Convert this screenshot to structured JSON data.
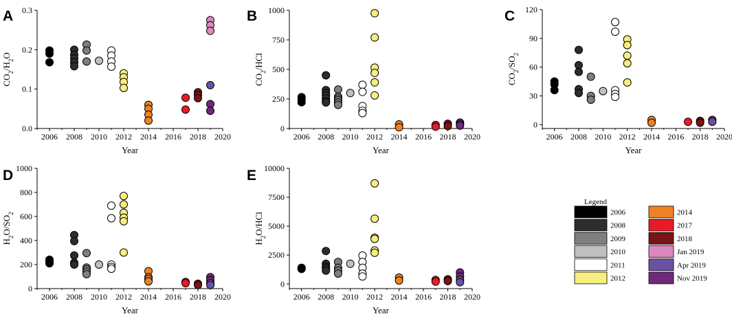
{
  "legend": {
    "title": "Legend",
    "entries": [
      {
        "label": "2006",
        "color": "#000000"
      },
      {
        "label": "2008",
        "color": "#2d2d2d"
      },
      {
        "label": "2009",
        "color": "#7f7f7f"
      },
      {
        "label": "2010",
        "color": "#c0c0c0"
      },
      {
        "label": "2011",
        "color": "#ffffff"
      },
      {
        "label": "2012",
        "color": "#f6ee7e"
      },
      {
        "label": "2014",
        "color": "#ef8224"
      },
      {
        "label": "2017",
        "color": "#e81c28"
      },
      {
        "label": "2018",
        "color": "#7a1416"
      },
      {
        "label": "Jan 2019",
        "color": "#de88bd"
      },
      {
        "label": "Apr 2019",
        "color": "#6a52a3"
      },
      {
        "label": "Nov 2019",
        "color": "#702a7c"
      }
    ]
  },
  "chart_data": [
    {
      "panel": "A",
      "type": "scatter",
      "xlabel": "Year",
      "ylabel": "CO2/H2O",
      "xlim": [
        2005,
        2020
      ],
      "ylim": [
        0,
        0.3
      ],
      "xticks": [
        "2006",
        "2008",
        "2010",
        "2012",
        "2014",
        "2016",
        "2018",
        "2020"
      ],
      "yticks": [
        "0.0",
        "0.1",
        "0.2",
        "0.3"
      ],
      "points": [
        {
          "x": 2006,
          "y": 0.198,
          "g": "2006"
        },
        {
          "x": 2006,
          "y": 0.19,
          "g": "2006"
        },
        {
          "x": 2006,
          "y": 0.168,
          "g": "2006"
        },
        {
          "x": 2008,
          "y": 0.2,
          "g": "2008"
        },
        {
          "x": 2008,
          "y": 0.187,
          "g": "2008"
        },
        {
          "x": 2008,
          "y": 0.178,
          "g": "2008"
        },
        {
          "x": 2008,
          "y": 0.168,
          "g": "2008"
        },
        {
          "x": 2008,
          "y": 0.158,
          "g": "2008"
        },
        {
          "x": 2009,
          "y": 0.213,
          "g": "2009"
        },
        {
          "x": 2009,
          "y": 0.198,
          "g": "2009"
        },
        {
          "x": 2009,
          "y": 0.17,
          "g": "2009"
        },
        {
          "x": 2010,
          "y": 0.172,
          "g": "2010"
        },
        {
          "x": 2011,
          "y": 0.198,
          "g": "2011"
        },
        {
          "x": 2011,
          "y": 0.185,
          "g": "2011"
        },
        {
          "x": 2011,
          "y": 0.17,
          "g": "2011"
        },
        {
          "x": 2011,
          "y": 0.157,
          "g": "2011"
        },
        {
          "x": 2012,
          "y": 0.14,
          "g": "2012"
        },
        {
          "x": 2012,
          "y": 0.13,
          "g": "2012"
        },
        {
          "x": 2012,
          "y": 0.118,
          "g": "2012"
        },
        {
          "x": 2012,
          "y": 0.103,
          "g": "2012"
        },
        {
          "x": 2014,
          "y": 0.06,
          "g": "2014"
        },
        {
          "x": 2014,
          "y": 0.05,
          "g": "2014"
        },
        {
          "x": 2014,
          "y": 0.035,
          "g": "2014"
        },
        {
          "x": 2014,
          "y": 0.02,
          "g": "2014"
        },
        {
          "x": 2017,
          "y": 0.078,
          "g": "2017"
        },
        {
          "x": 2017,
          "y": 0.048,
          "g": "2017"
        },
        {
          "x": 2018,
          "y": 0.092,
          "g": "2018"
        },
        {
          "x": 2018,
          "y": 0.085,
          "g": "2018"
        },
        {
          "x": 2018,
          "y": 0.077,
          "g": "2018"
        },
        {
          "x": 2019,
          "y": 0.275,
          "g": "Jan 2019"
        },
        {
          "x": 2019,
          "y": 0.262,
          "g": "Jan 2019"
        },
        {
          "x": 2019,
          "y": 0.248,
          "g": "Jan 2019"
        },
        {
          "x": 2019,
          "y": 0.11,
          "g": "Apr 2019"
        },
        {
          "x": 2019,
          "y": 0.062,
          "g": "Nov 2019"
        },
        {
          "x": 2019,
          "y": 0.045,
          "g": "Nov 2019"
        }
      ]
    },
    {
      "panel": "B",
      "type": "scatter",
      "xlabel": "Year",
      "ylabel": "CO2/HCl",
      "xlim": [
        2005,
        2020
      ],
      "ylim": [
        0,
        1000
      ],
      "xticks": [
        "2006",
        "2008",
        "2010",
        "2012",
        "2014",
        "2016",
        "2018",
        "2020"
      ],
      "yticks": [
        "0",
        "250",
        "500",
        "750",
        "1000"
      ],
      "points": [
        {
          "x": 2006,
          "y": 265,
          "g": "2006"
        },
        {
          "x": 2006,
          "y": 245,
          "g": "2006"
        },
        {
          "x": 2006,
          "y": 222,
          "g": "2006"
        },
        {
          "x": 2008,
          "y": 450,
          "g": "2008"
        },
        {
          "x": 2008,
          "y": 325,
          "g": "2008"
        },
        {
          "x": 2008,
          "y": 300,
          "g": "2008"
        },
        {
          "x": 2008,
          "y": 280,
          "g": "2008"
        },
        {
          "x": 2008,
          "y": 255,
          "g": "2008"
        },
        {
          "x": 2008,
          "y": 230,
          "g": "2008"
        },
        {
          "x": 2008,
          "y": 220,
          "g": "2008"
        },
        {
          "x": 2009,
          "y": 330,
          "g": "2009"
        },
        {
          "x": 2009,
          "y": 270,
          "g": "2009"
        },
        {
          "x": 2009,
          "y": 255,
          "g": "2009"
        },
        {
          "x": 2009,
          "y": 240,
          "g": "2009"
        },
        {
          "x": 2009,
          "y": 220,
          "g": "2009"
        },
        {
          "x": 2009,
          "y": 200,
          "g": "2009"
        },
        {
          "x": 2010,
          "y": 300,
          "g": "2010"
        },
        {
          "x": 2011,
          "y": 370,
          "g": "2011"
        },
        {
          "x": 2011,
          "y": 310,
          "g": "2011"
        },
        {
          "x": 2011,
          "y": 190,
          "g": "2011"
        },
        {
          "x": 2011,
          "y": 150,
          "g": "2011"
        },
        {
          "x": 2011,
          "y": 130,
          "g": "2011"
        },
        {
          "x": 2012,
          "y": 975,
          "g": "2012"
        },
        {
          "x": 2012,
          "y": 770,
          "g": "2012"
        },
        {
          "x": 2012,
          "y": 515,
          "g": "2012"
        },
        {
          "x": 2012,
          "y": 470,
          "g": "2012"
        },
        {
          "x": 2012,
          "y": 390,
          "g": "2012"
        },
        {
          "x": 2012,
          "y": 280,
          "g": "2012"
        },
        {
          "x": 2014,
          "y": 35,
          "g": "2014"
        },
        {
          "x": 2014,
          "y": 10,
          "g": "2014"
        },
        {
          "x": 2017,
          "y": 30,
          "g": "2017"
        },
        {
          "x": 2017,
          "y": 15,
          "g": "2017"
        },
        {
          "x": 2018,
          "y": 40,
          "g": "2018"
        },
        {
          "x": 2018,
          "y": 20,
          "g": "2018"
        },
        {
          "x": 2019,
          "y": 50,
          "g": "Nov 2019"
        },
        {
          "x": 2019,
          "y": 35,
          "g": "Apr 2019"
        },
        {
          "x": 2019,
          "y": 25,
          "g": "Nov 2019"
        }
      ]
    },
    {
      "panel": "C",
      "type": "scatter",
      "xlabel": "Year",
      "ylabel": "CO2/SO2",
      "xlim": [
        2005,
        2020
      ],
      "ylim": [
        -4,
        120
      ],
      "xticks": [
        "2006",
        "2008",
        "2010",
        "2012",
        "2014",
        "2016",
        "2018",
        "2020"
      ],
      "yticks": [
        "0",
        "30",
        "60",
        "90",
        "120"
      ],
      "points": [
        {
          "x": 2006,
          "y": 45,
          "g": "2006"
        },
        {
          "x": 2006,
          "y": 42,
          "g": "2006"
        },
        {
          "x": 2006,
          "y": 36,
          "g": "2006"
        },
        {
          "x": 2008,
          "y": 78,
          "g": "2008"
        },
        {
          "x": 2008,
          "y": 62,
          "g": "2008"
        },
        {
          "x": 2008,
          "y": 55,
          "g": "2008"
        },
        {
          "x": 2008,
          "y": 37,
          "g": "2008"
        },
        {
          "x": 2008,
          "y": 33,
          "g": "2008"
        },
        {
          "x": 2009,
          "y": 50,
          "g": "2009"
        },
        {
          "x": 2009,
          "y": 30,
          "g": "2009"
        },
        {
          "x": 2009,
          "y": 26,
          "g": "2009"
        },
        {
          "x": 2010,
          "y": 35,
          "g": "2010"
        },
        {
          "x": 2011,
          "y": 107,
          "g": "2011"
        },
        {
          "x": 2011,
          "y": 97,
          "g": "2011"
        },
        {
          "x": 2011,
          "y": 36,
          "g": "2011"
        },
        {
          "x": 2011,
          "y": 32,
          "g": "2011"
        },
        {
          "x": 2011,
          "y": 29,
          "g": "2011"
        },
        {
          "x": 2012,
          "y": 89,
          "g": "2012"
        },
        {
          "x": 2012,
          "y": 83,
          "g": "2012"
        },
        {
          "x": 2012,
          "y": 72,
          "g": "2012"
        },
        {
          "x": 2012,
          "y": 64,
          "g": "2012"
        },
        {
          "x": 2012,
          "y": 44,
          "g": "2012"
        },
        {
          "x": 2014,
          "y": 5,
          "g": "2014"
        },
        {
          "x": 2014,
          "y": 2,
          "g": "2014"
        },
        {
          "x": 2017,
          "y": 3,
          "g": "2017"
        },
        {
          "x": 2018,
          "y": 4,
          "g": "2018"
        },
        {
          "x": 2018,
          "y": 2,
          "g": "2018"
        },
        {
          "x": 2019,
          "y": 5,
          "g": "Nov 2019"
        },
        {
          "x": 2019,
          "y": 3,
          "g": "Apr 2019"
        }
      ]
    },
    {
      "panel": "D",
      "type": "scatter",
      "xlabel": "Year",
      "ylabel": "H2O/SO2",
      "xlim": [
        2005,
        2020
      ],
      "ylim": [
        0,
        1000
      ],
      "xticks": [
        "2006",
        "2008",
        "2010",
        "2012",
        "2014",
        "2016",
        "2018",
        "2020"
      ],
      "yticks": [
        "0",
        "200",
        "400",
        "600",
        "800",
        "1000"
      ],
      "points": [
        {
          "x": 2006,
          "y": 240,
          "g": "2006"
        },
        {
          "x": 2006,
          "y": 225,
          "g": "2006"
        },
        {
          "x": 2006,
          "y": 210,
          "g": "2006"
        },
        {
          "x": 2008,
          "y": 445,
          "g": "2008"
        },
        {
          "x": 2008,
          "y": 395,
          "g": "2008"
        },
        {
          "x": 2008,
          "y": 275,
          "g": "2008"
        },
        {
          "x": 2008,
          "y": 215,
          "g": "2008"
        },
        {
          "x": 2008,
          "y": 200,
          "g": "2008"
        },
        {
          "x": 2009,
          "y": 295,
          "g": "2009"
        },
        {
          "x": 2009,
          "y": 175,
          "g": "2009"
        },
        {
          "x": 2009,
          "y": 160,
          "g": "2009"
        },
        {
          "x": 2009,
          "y": 140,
          "g": "2009"
        },
        {
          "x": 2009,
          "y": 120,
          "g": "2009"
        },
        {
          "x": 2010,
          "y": 200,
          "g": "2010"
        },
        {
          "x": 2011,
          "y": 690,
          "g": "2011"
        },
        {
          "x": 2011,
          "y": 585,
          "g": "2011"
        },
        {
          "x": 2011,
          "y": 200,
          "g": "2011"
        },
        {
          "x": 2011,
          "y": 180,
          "g": "2011"
        },
        {
          "x": 2011,
          "y": 165,
          "g": "2011"
        },
        {
          "x": 2012,
          "y": 770,
          "g": "2012"
        },
        {
          "x": 2012,
          "y": 700,
          "g": "2012"
        },
        {
          "x": 2012,
          "y": 630,
          "g": "2012"
        },
        {
          "x": 2012,
          "y": 590,
          "g": "2012"
        },
        {
          "x": 2012,
          "y": 560,
          "g": "2012"
        },
        {
          "x": 2012,
          "y": 300,
          "g": "2012"
        },
        {
          "x": 2014,
          "y": 145,
          "g": "2014"
        },
        {
          "x": 2014,
          "y": 95,
          "g": "2014"
        },
        {
          "x": 2014,
          "y": 80,
          "g": "2014"
        },
        {
          "x": 2014,
          "y": 60,
          "g": "2014"
        },
        {
          "x": 2017,
          "y": 55,
          "g": "2017"
        },
        {
          "x": 2017,
          "y": 45,
          "g": "2017"
        },
        {
          "x": 2018,
          "y": 40,
          "g": "2018"
        },
        {
          "x": 2018,
          "y": 30,
          "g": "2018"
        },
        {
          "x": 2019,
          "y": 95,
          "g": "Nov 2019"
        },
        {
          "x": 2019,
          "y": 70,
          "g": "Nov 2019"
        },
        {
          "x": 2019,
          "y": 45,
          "g": "Apr 2019"
        },
        {
          "x": 2019,
          "y": 30,
          "g": "Apr 2019"
        }
      ]
    },
    {
      "panel": "E",
      "type": "scatter",
      "xlabel": "Year",
      "ylabel": "H2O/HCl",
      "xlim": [
        2005,
        2020
      ],
      "ylim": [
        -400,
        10000
      ],
      "xticks": [
        "2006",
        "2008",
        "2010",
        "2012",
        "2014",
        "2016",
        "2018",
        "2020"
      ],
      "yticks": [
        "0",
        "2500",
        "5000",
        "7500",
        "10000"
      ],
      "points": [
        {
          "x": 2006,
          "y": 1400,
          "g": "2006"
        },
        {
          "x": 2006,
          "y": 1300,
          "g": "2006"
        },
        {
          "x": 2008,
          "y": 2850,
          "g": "2008"
        },
        {
          "x": 2008,
          "y": 1750,
          "g": "2008"
        },
        {
          "x": 2008,
          "y": 1500,
          "g": "2008"
        },
        {
          "x": 2008,
          "y": 1350,
          "g": "2008"
        },
        {
          "x": 2008,
          "y": 1150,
          "g": "2008"
        },
        {
          "x": 2009,
          "y": 1900,
          "g": "2009"
        },
        {
          "x": 2009,
          "y": 1400,
          "g": "2009"
        },
        {
          "x": 2009,
          "y": 1150,
          "g": "2009"
        },
        {
          "x": 2009,
          "y": 900,
          "g": "2009"
        },
        {
          "x": 2010,
          "y": 1750,
          "g": "2010"
        },
        {
          "x": 2011,
          "y": 2450,
          "g": "2011"
        },
        {
          "x": 2011,
          "y": 1900,
          "g": "2011"
        },
        {
          "x": 2011,
          "y": 1400,
          "g": "2011"
        },
        {
          "x": 2011,
          "y": 900,
          "g": "2011"
        },
        {
          "x": 2011,
          "y": 650,
          "g": "2011"
        },
        {
          "x": 2012,
          "y": 8700,
          "g": "2012"
        },
        {
          "x": 2012,
          "y": 5650,
          "g": "2012"
        },
        {
          "x": 2012,
          "y": 4000,
          "g": "2012"
        },
        {
          "x": 2012,
          "y": 3900,
          "g": "2012"
        },
        {
          "x": 2012,
          "y": 2900,
          "g": "2012"
        },
        {
          "x": 2012,
          "y": 2700,
          "g": "2012"
        },
        {
          "x": 2014,
          "y": 550,
          "g": "2014"
        },
        {
          "x": 2014,
          "y": 300,
          "g": "2014"
        },
        {
          "x": 2017,
          "y": 350,
          "g": "2017"
        },
        {
          "x": 2017,
          "y": 200,
          "g": "2017"
        },
        {
          "x": 2018,
          "y": 400,
          "g": "2018"
        },
        {
          "x": 2018,
          "y": 250,
          "g": "2018"
        },
        {
          "x": 2019,
          "y": 1000,
          "g": "Nov 2019"
        },
        {
          "x": 2019,
          "y": 650,
          "g": "Nov 2019"
        },
        {
          "x": 2019,
          "y": 350,
          "g": "Apr 2019"
        },
        {
          "x": 2019,
          "y": 150,
          "g": "Apr 2019"
        }
      ]
    }
  ]
}
